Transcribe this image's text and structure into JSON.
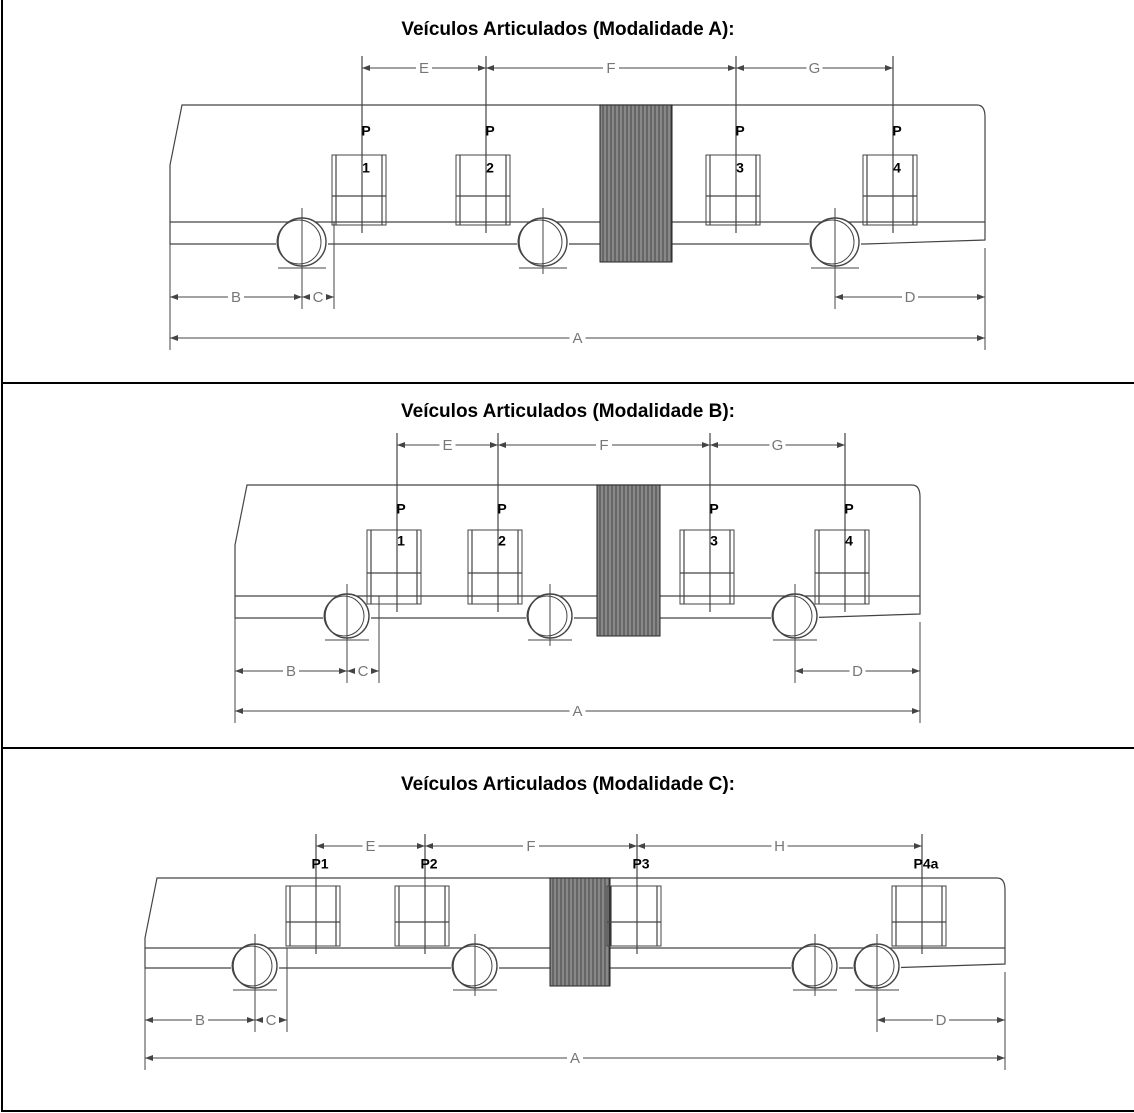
{
  "panels": [
    {
      "title": "Veículos Articulados (Modalidade A):",
      "dimensions": [
        "E",
        "F",
        "G",
        "B",
        "C",
        "D",
        "A"
      ],
      "doors": [
        [
          "P",
          "1"
        ],
        [
          "P",
          "2"
        ],
        [
          "P",
          "3"
        ],
        [
          "P",
          "4"
        ]
      ]
    },
    {
      "title": "Veículos Articulados (Modalidade B):",
      "dimensions": [
        "E",
        "F",
        "G",
        "B",
        "C",
        "D",
        "A"
      ],
      "doors": [
        [
          "P",
          "1"
        ],
        [
          "P",
          "2"
        ],
        [
          "P",
          "3"
        ],
        [
          "P",
          "4"
        ]
      ]
    },
    {
      "title": "Veículos Articulados (Modalidade C):",
      "dimensions": [
        "E",
        "F",
        "H",
        "B",
        "C",
        "D",
        "A"
      ],
      "doors": [
        [
          "P1"
        ],
        [
          "P2"
        ],
        [
          "P3"
        ],
        [
          "P4a"
        ]
      ]
    }
  ]
}
